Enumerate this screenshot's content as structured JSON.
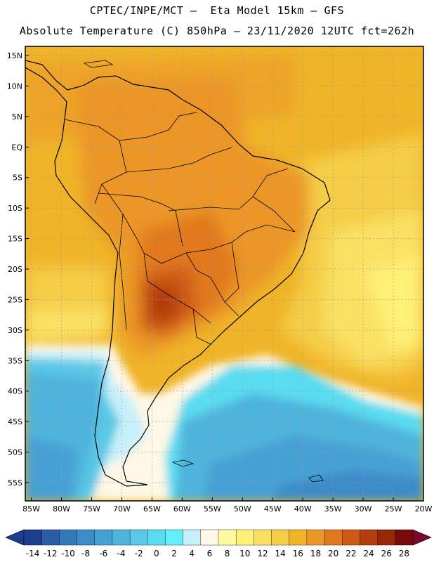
{
  "header": {
    "line1": "CPTEC/INPE/MCT –  Eta Model 15km – GFS",
    "line2": "Absolute Temperature (C) 850hPa – 23/11/2020 12UTC fct=262h"
  },
  "map": {
    "lat_labels": [
      "15N",
      "10N",
      "5N",
      "EQ",
      "5S",
      "10S",
      "15S",
      "20S",
      "25S",
      "30S",
      "35S",
      "40S",
      "45S",
      "50S",
      "55S"
    ],
    "lat_values": [
      15,
      10,
      5,
      0,
      -5,
      -10,
      -15,
      -20,
      -25,
      -30,
      -35,
      -40,
      -45,
      -50,
      -55
    ],
    "lon_labels": [
      "85W",
      "80W",
      "75W",
      "70W",
      "65W",
      "60W",
      "55W",
      "50W",
      "45W",
      "40W",
      "35W",
      "30W",
      "25W",
      "20W"
    ],
    "lon_values": [
      -85,
      -80,
      -75,
      -70,
      -65,
      -60,
      -55,
      -50,
      -45,
      -40,
      -35,
      -30,
      -25,
      -20
    ],
    "lat_range": [
      -58,
      16.5
    ],
    "lon_range": [
      -86,
      -20
    ]
  },
  "colorbar": {
    "labels": [
      "-14",
      "-12",
      "-10",
      "-8",
      "-6",
      "-4",
      "-2",
      "0",
      "2",
      "4",
      "6",
      "8",
      "10",
      "12",
      "14",
      "16",
      "18",
      "20",
      "22",
      "24",
      "26",
      "28"
    ],
    "colors": [
      "#1e3c8c",
      "#2a5ca8",
      "#3478bc",
      "#3c8cc8",
      "#46a0d4",
      "#50b4dc",
      "#5ac8e6",
      "#5adcf0",
      "#64f0fa",
      "#c8f0fa",
      "#fff8e6",
      "#fffaa0",
      "#fff078",
      "#fae164",
      "#f5cd46",
      "#f0b428",
      "#eb9628",
      "#e1781e",
      "#cd5a14",
      "#b43c0f",
      "#96280a",
      "#780a0a"
    ]
  }
}
